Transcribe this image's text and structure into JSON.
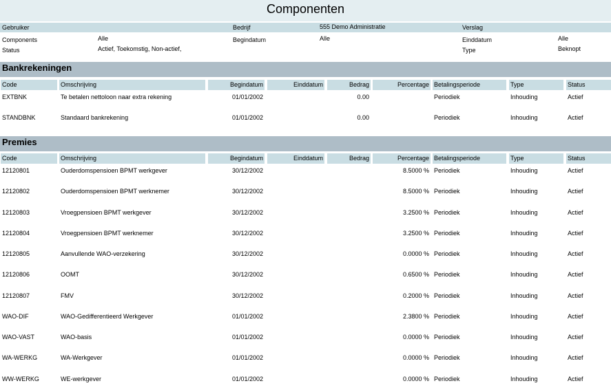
{
  "title": "Componenten",
  "info": {
    "gebruiker_label": "Gebruiker",
    "bedrijf_label": "Bedrijf",
    "bedrijf_value": "555 Demo Administratie",
    "verslag_label": "Verslag",
    "components_label": "Components",
    "components_value": "Alle",
    "begindatum_label": "Begindatum",
    "begindatum_value": "Alle",
    "einddatum_label": "Einddatum",
    "einddatum_value": "Alle",
    "status_label": "Status",
    "status_value": "Actief, Toekomstig, Non-actief,",
    "type_label": "Type",
    "type_value": "Beknopt"
  },
  "columns": [
    "Code",
    "Omschrijving",
    "Begindatum",
    "Einddatum",
    "Bedrag",
    "Percentage",
    "Betalingsperiode",
    "Type",
    "Status"
  ],
  "bank": {
    "title": "Bankrekeningen",
    "rows": [
      [
        "EXTBNK",
        "Te betalen nettoloon naar extra rekening",
        "01/01/2002",
        "",
        "0.00",
        "",
        "Periodiek",
        "Inhouding",
        "Actief"
      ],
      [
        "STANDBNK",
        "Standaard bankrekening",
        "01/01/2002",
        "",
        "0.00",
        "",
        "Periodiek",
        "Inhouding",
        "Actief"
      ]
    ]
  },
  "premies": {
    "title": "Premies",
    "rows": [
      [
        "12120801",
        "Ouderdomspensioen BPMT werkgever",
        "30/12/2002",
        "",
        "",
        "8.5000 %",
        "Periodiek",
        "Inhouding",
        "Actief"
      ],
      [
        "12120802",
        "Ouderdomspensioen BPMT werknemer",
        "30/12/2002",
        "",
        "",
        "8.5000 %",
        "Periodiek",
        "Inhouding",
        "Actief"
      ],
      [
        "12120803",
        "Vroegpensioen BPMT werkgever",
        "30/12/2002",
        "",
        "",
        "3.2500 %",
        "Periodiek",
        "Inhouding",
        "Actief"
      ],
      [
        "12120804",
        "Vroegpensioen BPMT werknemer",
        "30/12/2002",
        "",
        "",
        "3.2500 %",
        "Periodiek",
        "Inhouding",
        "Actief"
      ],
      [
        "12120805",
        "Aanvullende WAO-verzekering",
        "30/12/2002",
        "",
        "",
        "0.0000 %",
        "Periodiek",
        "Inhouding",
        "Actief"
      ],
      [
        "12120806",
        "OOMT",
        "30/12/2002",
        "",
        "",
        "0.6500 %",
        "Periodiek",
        "Inhouding",
        "Actief"
      ],
      [
        "12120807",
        "FMV",
        "30/12/2002",
        "",
        "",
        "0.2000 %",
        "Periodiek",
        "Inhouding",
        "Actief"
      ],
      [
        "WAO-DIF",
        "WAO-Gedifferentieerd Werkgever",
        "01/01/2002",
        "",
        "",
        "2.3800 %",
        "Periodiek",
        "Inhouding",
        "Actief"
      ],
      [
        "WAO-VAST",
        "WAO-basis",
        "01/01/2002",
        "",
        "",
        "0.0000 %",
        "Periodiek",
        "Inhouding",
        "Actief"
      ],
      [
        "WA-WERKG",
        "WA-Werkgever",
        "01/01/2002",
        "",
        "",
        "0.0000 %",
        "Periodiek",
        "Inhouding",
        "Actief"
      ],
      [
        "WW-WERKG",
        "WE-werkgever",
        "01/01/2002",
        "",
        "",
        "0.0000 %",
        "Periodiek",
        "Inhouding",
        "Actief"
      ]
    ]
  }
}
